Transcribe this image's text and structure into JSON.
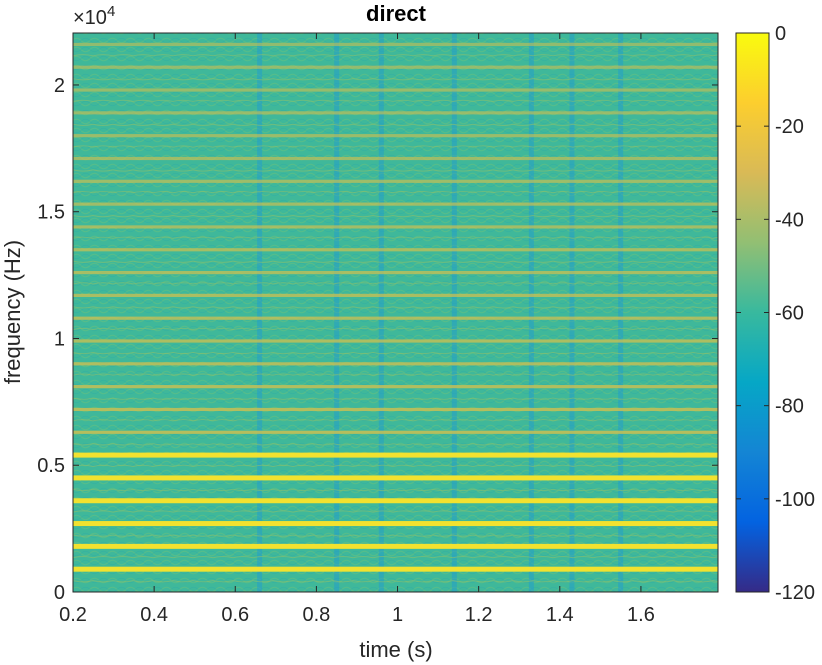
{
  "chart_data": {
    "type": "heatmap",
    "title": "direct",
    "xlabel": "time (s)",
    "ylabel": "frequency (Hz)",
    "y_exponent_label": "×10",
    "y_exponent_power": "4",
    "xlim": [
      0.2,
      1.79
    ],
    "ylim": [
      0,
      22050
    ],
    "x_ticks": [
      0.2,
      0.4,
      0.6,
      0.8,
      1,
      1.2,
      1.4,
      1.6
    ],
    "x_tick_labels": [
      "0.2",
      "0.4",
      "0.6",
      "0.8",
      "1",
      "1.2",
      "1.4",
      "1.6"
    ],
    "y_ticks": [
      0,
      5000,
      10000,
      15000,
      20000
    ],
    "y_tick_labels": [
      "0",
      "0.5",
      "1",
      "1.5",
      "2"
    ],
    "colorbar": {
      "range": [
        -120,
        0
      ],
      "ticks": [
        0,
        -20,
        -40,
        -60,
        -80,
        -100,
        -120
      ],
      "tick_labels": [
        "0",
        "-20",
        "-40",
        "-60",
        "-80",
        "-100",
        "-120"
      ],
      "colormap": "parula"
    },
    "harmonic_fundamental_hz": 900,
    "strong_harmonic_frequencies_hz": [
      900,
      1800,
      2700,
      3600,
      4500,
      5400
    ],
    "vertical_notch_times_s": [
      0.66,
      0.85,
      0.96,
      1.14,
      1.33,
      1.43,
      1.55
    ],
    "grid": false
  },
  "colors": {
    "background_field": "#3fb89a",
    "harmonic_line": "#f2e22f",
    "notch": "#1f9ad4"
  }
}
